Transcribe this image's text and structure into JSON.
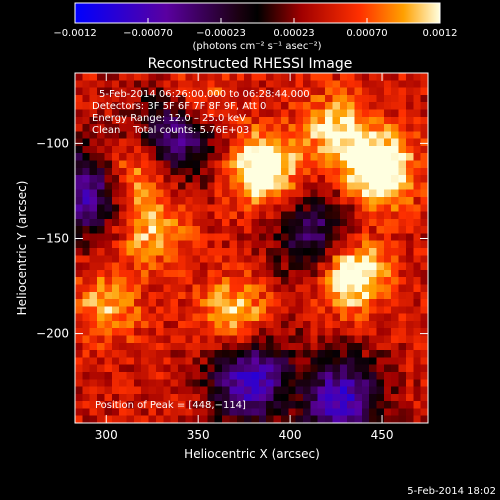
{
  "chart_data": {
    "type": "heatmap",
    "title": "Reconstructed RHESSI Image",
    "xlabel": "Heliocentric X (arcsec)",
    "ylabel": "Heliocentric Y (arcsec)",
    "xlim": [
      283,
      475
    ],
    "ylim": [
      -247,
      -63
    ],
    "x_ticks": [
      300,
      350,
      400,
      450
    ],
    "y_ticks": [
      -100,
      -150,
      -200
    ],
    "colorbar": {
      "ticks": [
        "−0.0012",
        "−0.00070",
        "−0.00023",
        "0.00023",
        "0.00070",
        "0.0012"
      ],
      "unit_label": "(photons cm⁻² s⁻¹ asec⁻²)",
      "range": [
        -0.0012,
        0.0012
      ]
    },
    "annotations": {
      "time_range": "5-Feb-2014 06:26:00.000 to 06:28:44.000",
      "detectors": "Detectors: 3F 5F 6F 7F 8F 9F, Att 0",
      "energy": "Energy Range: 12.0 – 25.0 keV",
      "clean": "Clean    Total counts: 5.76E+03",
      "peak": "Position of Peak = [448,−114]"
    },
    "peak": [
      448,
      -114
    ],
    "sources": [
      {
        "x": 385,
        "y": -113,
        "value": 0.0011
      },
      {
        "x": 448,
        "y": -114,
        "value": 0.0012
      },
      {
        "x": 433,
        "y": -168,
        "value": 0.0012
      },
      {
        "x": 313,
        "y": -117,
        "value": 0.00075
      },
      {
        "x": 324,
        "y": -145,
        "value": 0.0006
      },
      {
        "x": 370,
        "y": -190,
        "value": 0.0007
      },
      {
        "x": 405,
        "y": -232,
        "value": 0.0005
      },
      {
        "x": 425,
        "y": -93,
        "value": 0.0007
      },
      {
        "x": 350,
        "y": -80,
        "value": 0.0006
      },
      {
        "x": 300,
        "y": -185,
        "value": 0.00055
      }
    ],
    "negative_regions": [
      {
        "x": 290,
        "y": -125,
        "value": -0.0007
      },
      {
        "x": 340,
        "y": -95,
        "value": -0.0006
      },
      {
        "x": 425,
        "y": -235,
        "value": -0.0009
      },
      {
        "x": 380,
        "y": -225,
        "value": -0.0008
      },
      {
        "x": 415,
        "y": -150,
        "value": -0.0004
      }
    ]
  },
  "footer_timestamp": "5-Feb-2014 18:02"
}
